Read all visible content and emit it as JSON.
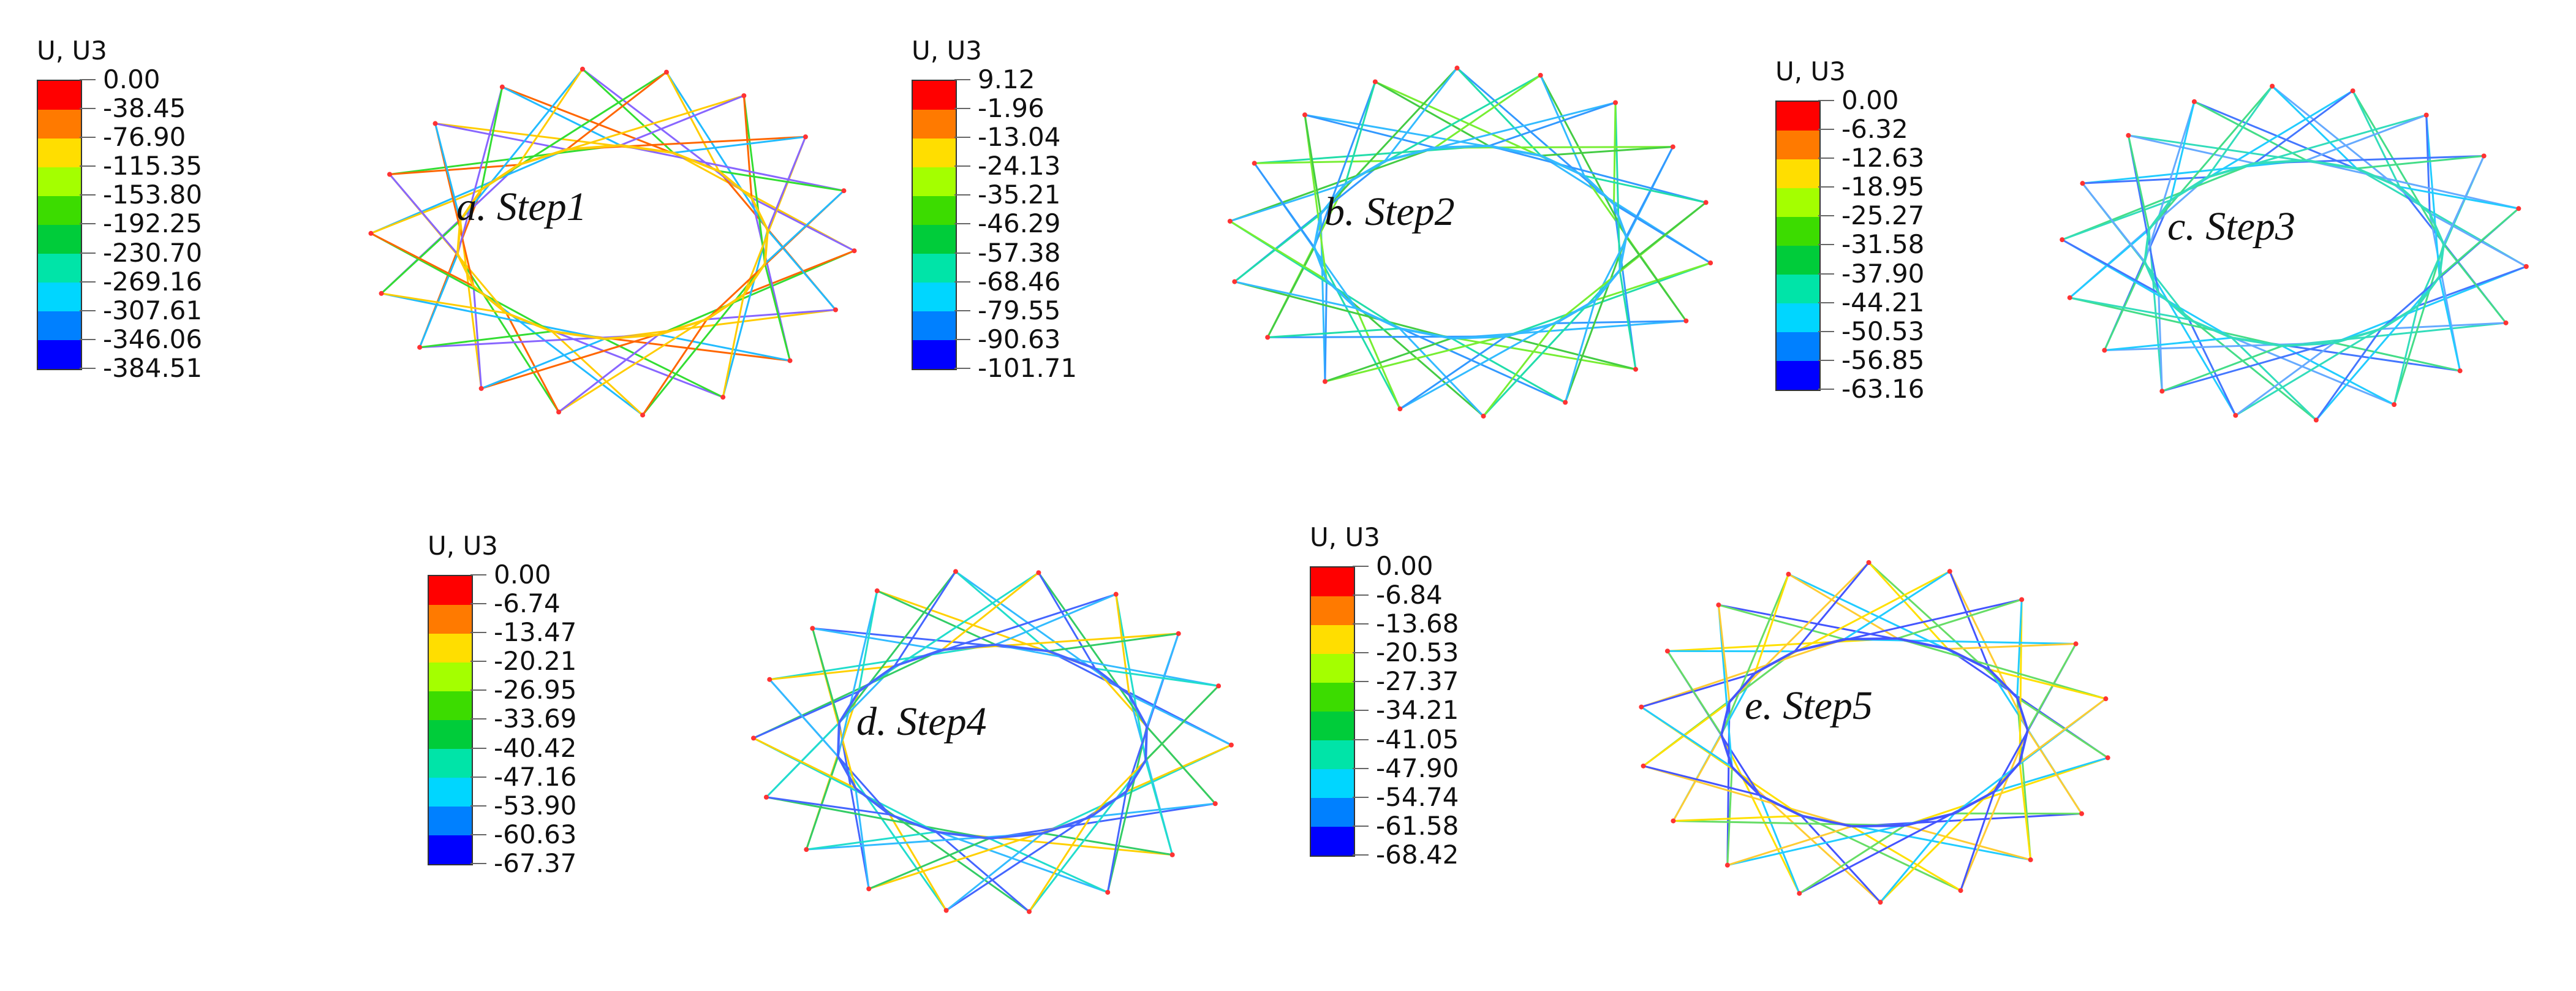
{
  "field_label": "U, U3",
  "palette": [
    "#ff0000",
    "#ff7a00",
    "#ffde00",
    "#a4ff00",
    "#3cdc00",
    "#00cc3a",
    "#00e4a8",
    "#00d6ff",
    "#0080ff",
    "#0000ff"
  ],
  "steps": [
    {
      "id": "step1",
      "caption": "a. Step1",
      "ticks": [
        "0.00",
        "-38.45",
        "-76.90",
        "-115.35",
        "-153.80",
        "-192.25",
        "-230.70",
        "-269.16",
        "-307.61",
        "-346.06",
        "-384.51"
      ]
    },
    {
      "id": "step2",
      "caption": "b. Step2",
      "ticks": [
        "9.12",
        "-1.96",
        "-13.04",
        "-24.13",
        "-35.21",
        "-46.29",
        "-57.38",
        "-68.46",
        "-79.55",
        "-90.63",
        "-101.71"
      ]
    },
    {
      "id": "step3",
      "caption": "c. Step3",
      "ticks": [
        "0.00",
        "-6.32",
        "-12.63",
        "-18.95",
        "-25.27",
        "-31.58",
        "-37.90",
        "-44.21",
        "-50.53",
        "-56.85",
        "-63.16"
      ]
    },
    {
      "id": "step4",
      "caption": "d. Step4",
      "ticks": [
        "0.00",
        "-6.74",
        "-13.47",
        "-20.21",
        "-26.95",
        "-33.69",
        "-40.42",
        "-47.16",
        "-53.90",
        "-60.63",
        "-67.37"
      ]
    },
    {
      "id": "step5",
      "caption": "e. Step5",
      "ticks": [
        "0.00",
        "-6.84",
        "-13.68",
        "-20.53",
        "-27.37",
        "-34.21",
        "-41.05",
        "-47.90",
        "-54.74",
        "-61.58",
        "-68.42"
      ]
    }
  ]
}
